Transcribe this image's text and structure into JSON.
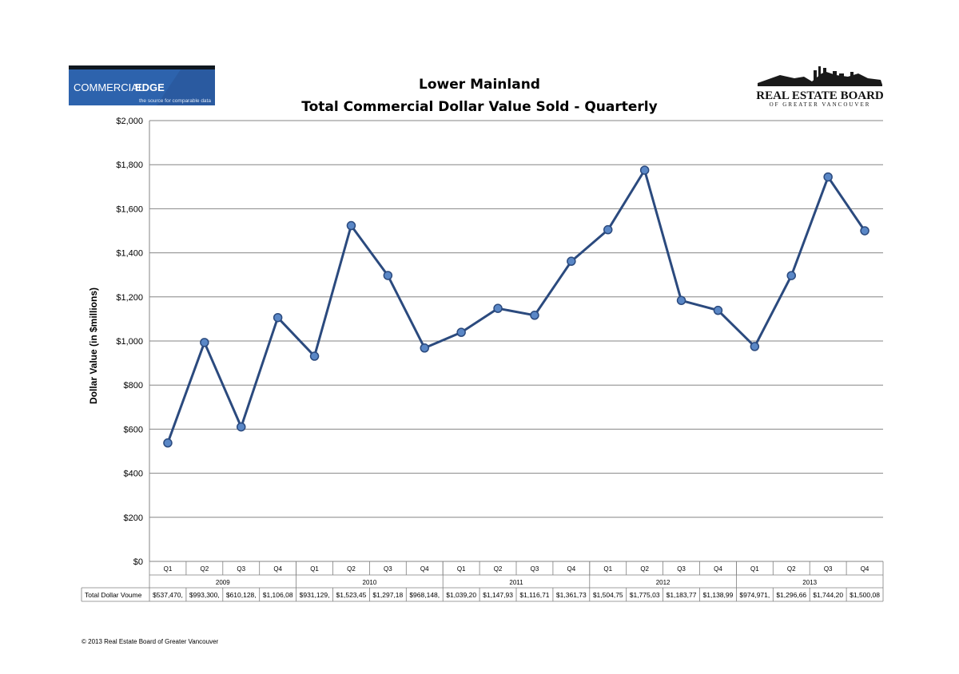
{
  "branding": {
    "left_logo_text": [
      "COMMERCIAL",
      "EDGE"
    ],
    "left_logo_tagline": "the source for comparable data",
    "right_logo_text": "REAL ESTATE BOARD",
    "right_logo_tagline": "OF GREATER VANCOUVER"
  },
  "footer": {
    "copyright": "© 2013 Real Estate Board of Greater Vancouver"
  },
  "colors": {
    "line": "#2b4a7e",
    "marker": "#5a87c6",
    "grid": "#868686",
    "brand_blue": "#2a5aa0"
  },
  "chart_data": {
    "type": "line",
    "title": [
      "Lower Mainland",
      "Total Commercial Dollar Value Sold - Quarterly"
    ],
    "ylabel": "Dollar Value (in $millions)",
    "xlabel": "",
    "ylim": [
      0,
      2000
    ],
    "yticks": [
      0,
      200,
      400,
      600,
      800,
      1000,
      1200,
      1400,
      1600,
      1800,
      2000
    ],
    "ytick_labels": [
      "$0",
      "$200",
      "$400",
      "$600",
      "$800",
      "$1,000",
      "$1,200",
      "$1,400",
      "$1,600",
      "$1,800",
      "$2,000"
    ],
    "grid": true,
    "legend": "none",
    "categories": [
      "Q1",
      "Q2",
      "Q3",
      "Q4",
      "Q1",
      "Q2",
      "Q3",
      "Q4",
      "Q1",
      "Q2",
      "Q3",
      "Q4",
      "Q1",
      "Q2",
      "Q3",
      "Q4",
      "Q1",
      "Q2",
      "Q3",
      "Q4"
    ],
    "years": [
      "2009",
      "2010",
      "2011",
      "2012",
      "2013"
    ],
    "series": [
      {
        "values": [
          537.5,
          993.3,
          610.1,
          1106.1,
          931.1,
          1523.5,
          1297.2,
          968.1,
          1039.2,
          1147.9,
          1116.7,
          1361.7,
          1504.8,
          1775.0,
          1183.8,
          1139.0,
          975.0,
          1296.7,
          1744.2,
          1500.1
        ]
      }
    ],
    "table": {
      "row_label": "Total Dollar Voume",
      "cells": [
        "$537,470,",
        "$993,300,",
        "$610,128,",
        "$1,106,08",
        "$931,129,",
        "$1,523,45",
        "$1,297,18",
        "$968,148,",
        "$1,039,20",
        "$1,147,93",
        "$1,116,71",
        "$1,361,73",
        "$1,504,75",
        "$1,775,03",
        "$1,183,77",
        "$1,138,99",
        "$974,971,",
        "$1,296,66",
        "$1,744,20",
        "$1,500,08"
      ]
    }
  }
}
